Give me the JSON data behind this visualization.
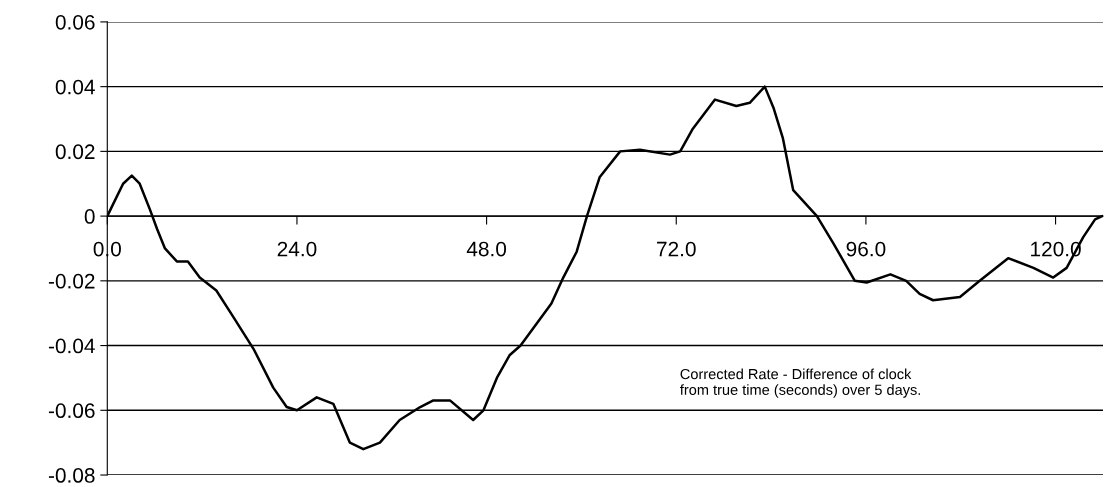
{
  "chart_data": {
    "type": "line",
    "color": "#000000",
    "x": [
      0,
      0.8,
      2.0,
      3.1,
      4.1,
      5.4,
      6.3,
      7.3,
      8.8,
      10.2,
      11.7,
      13.8,
      15.9,
      18.5,
      21.0,
      22.7,
      24.0,
      26.5,
      28.6,
      30.7,
      32.4,
      34.5,
      37.0,
      39.6,
      41.2,
      43.4,
      46.3,
      47.6,
      49.3,
      50.9,
      52.3,
      56.2,
      57.7,
      59.4,
      60.7,
      62.3,
      64.9,
      67.4,
      71.2,
      72.5,
      74.1,
      76.9,
      79.6,
      81.3,
      83.2,
      84.3,
      85.5,
      86.8,
      89.8,
      91.9,
      94.6,
      96.1,
      99.1,
      101.1,
      102.8,
      104.5,
      107.9,
      110.4,
      114.0,
      117.2,
      119.7,
      121.4,
      123.5,
      125.0,
      125.9
    ],
    "values": [
      0,
      0.004,
      0.01,
      0.0125,
      0.01,
      0.002,
      -0.004,
      -0.01,
      -0.014,
      -0.014,
      -0.019,
      -0.023,
      -0.031,
      -0.041,
      -0.053,
      -0.059,
      -0.06,
      -0.056,
      -0.058,
      -0.07,
      -0.072,
      -0.07,
      -0.063,
      -0.059,
      -0.057,
      -0.057,
      -0.063,
      -0.06,
      -0.05,
      -0.043,
      -0.04,
      -0.027,
      -0.019,
      -0.011,
      0,
      0.012,
      0.02,
      0.0205,
      0.019,
      0.02,
      0.027,
      0.036,
      0.034,
      0.035,
      0.04,
      0.0335,
      0.024,
      0.008,
      0,
      -0.0085,
      -0.02,
      -0.0205,
      -0.018,
      -0.02,
      -0.024,
      -0.026,
      -0.025,
      -0.02,
      -0.013,
      -0.016,
      -0.019,
      -0.016,
      -0.0065,
      -0.001,
      0
    ],
    "xlim": [
      0,
      126
    ],
    "xticks": [
      {
        "value": 0,
        "label": "0.0"
      },
      {
        "value": 24,
        "label": "24.0"
      },
      {
        "value": 48,
        "label": "48.0"
      },
      {
        "value": 72,
        "label": "72.0"
      },
      {
        "value": 96,
        "label": "96.0"
      },
      {
        "value": 120,
        "label": "120.0"
      }
    ],
    "ylim": [
      -0.08,
      0.06
    ],
    "yticks": [
      {
        "value": -0.08,
        "label": "-0.08"
      },
      {
        "value": -0.06,
        "label": "-0.06"
      },
      {
        "value": -0.04,
        "label": "-0.04"
      },
      {
        "value": -0.02,
        "label": "-0.02"
      },
      {
        "value": 0,
        "label": "0"
      },
      {
        "value": 0.02,
        "label": "0.02"
      },
      {
        "value": 0.04,
        "label": "0.04"
      },
      {
        "value": 0.06,
        "label": "0.06"
      }
    ],
    "grid": "y",
    "annotations": [
      "Corrected Rate - Difference of clock\nfrom true time (seconds) over 5 days."
    ]
  }
}
